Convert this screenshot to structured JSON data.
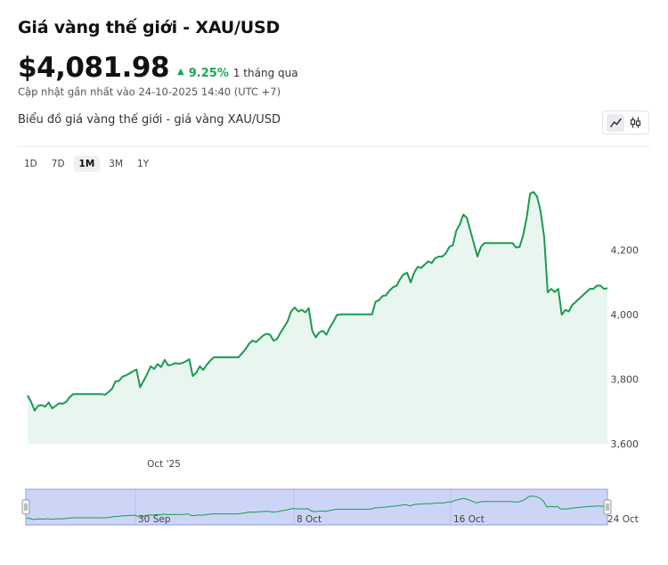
{
  "title": "Giá vàng thế giới - XAU/USD",
  "price": "$4,081.98",
  "change": {
    "percent": "9.25%",
    "period": "1 tháng qua",
    "direction": "up"
  },
  "updated": "Cập nhật gần nhất vào 24-10-2025 14:40 (UTC +7)",
  "subtitle": "Biểu đồ giá vàng thế giới - giá vàng XAU/USD",
  "chart_types": [
    {
      "name": "line",
      "icon": "line-chart-icon",
      "active": true
    },
    {
      "name": "candlestick",
      "icon": "candlestick-icon",
      "active": false
    }
  ],
  "ranges": [
    {
      "label": "1D",
      "active": false
    },
    {
      "label": "7D",
      "active": false
    },
    {
      "label": "1M",
      "active": true
    },
    {
      "label": "3M",
      "active": false
    },
    {
      "label": "1Y",
      "active": false
    }
  ],
  "colors": {
    "line": "#1a9a50",
    "area": "#e9f6ef",
    "up": "#1fa45b",
    "navigator_bg": "#cdd5f7",
    "navigator_border": "#8e9ee8"
  },
  "chart_data": {
    "type": "area",
    "xlabel": "",
    "ylabel": "",
    "ylim": [
      3600,
      4395
    ],
    "yticks": [
      3600,
      3800,
      4000,
      4200
    ],
    "ytick_labels": [
      "3,600",
      "3,800",
      "4,000",
      "4,200"
    ],
    "x_tick_labels": [
      "Oct '25"
    ],
    "grid": false,
    "series": [
      {
        "values": [
          3750,
          3730,
          3703,
          3718,
          3720,
          3715,
          3728,
          3710,
          3718,
          3726,
          3724,
          3730,
          3745,
          3754,
          3754,
          3754,
          3754,
          3754,
          3754,
          3754,
          3754,
          3754,
          3752,
          3760,
          3770,
          3793,
          3795,
          3808,
          3812,
          3818,
          3825,
          3830,
          3775,
          3795,
          3815,
          3840,
          3832,
          3847,
          3838,
          3860,
          3843,
          3845,
          3850,
          3848,
          3850,
          3855,
          3862,
          3810,
          3820,
          3840,
          3829,
          3845,
          3858,
          3868,
          3868,
          3868,
          3868,
          3868,
          3868,
          3868,
          3868,
          3880,
          3893,
          3910,
          3920,
          3915,
          3925,
          3935,
          3941,
          3938,
          3919,
          3925,
          3945,
          3962,
          3980,
          4010,
          4022,
          4010,
          4015,
          4007,
          4020,
          3950,
          3930,
          3945,
          3950,
          3938,
          3960,
          3978,
          3999,
          4001,
          4001,
          4001,
          4001,
          4001,
          4001,
          4001,
          4001,
          4001,
          4001,
          4040,
          4045,
          4058,
          4060,
          4075,
          4085,
          4090,
          4110,
          4125,
          4130,
          4100,
          4130,
          4148,
          4145,
          4155,
          4165,
          4160,
          4175,
          4180,
          4180,
          4190,
          4210,
          4215,
          4260,
          4280,
          4310,
          4300,
          4260,
          4220,
          4180,
          4210,
          4222,
          4222,
          4222,
          4222,
          4222,
          4222,
          4222,
          4222,
          4222,
          4208,
          4210,
          4245,
          4300,
          4375,
          4380,
          4365,
          4320,
          4240,
          4069,
          4080,
          4070,
          4080,
          4000,
          4015,
          4010,
          4030,
          4040,
          4050,
          4060,
          4070,
          4080,
          4080,
          4090,
          4090,
          4080,
          4082
        ]
      }
    ],
    "navigator": {
      "labels": [
        "30 Sep",
        "8 Oct",
        "16 Oct",
        "24 Oct"
      ]
    }
  }
}
